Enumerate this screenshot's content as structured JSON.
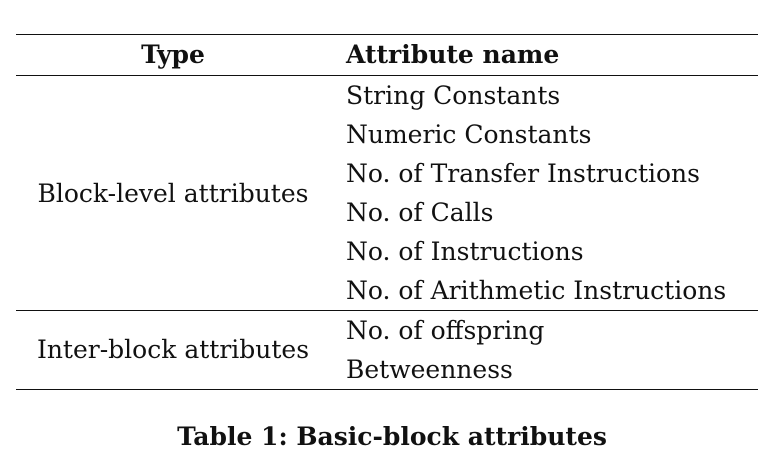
{
  "table": {
    "headers": {
      "type": "Type",
      "attribute_name": "Attribute name"
    },
    "groups": [
      {
        "type": "Block-level attributes",
        "attributes": [
          "String Constants",
          "Numeric Constants",
          "No. of Transfer Instructions",
          "No. of Calls",
          "No. of Instructions",
          "No. of Arithmetic Instructions"
        ]
      },
      {
        "type": "Inter-block attributes",
        "attributes": [
          "No. of offspring",
          "Betweenness"
        ]
      }
    ]
  },
  "caption": "Table 1: Basic-block attributes"
}
